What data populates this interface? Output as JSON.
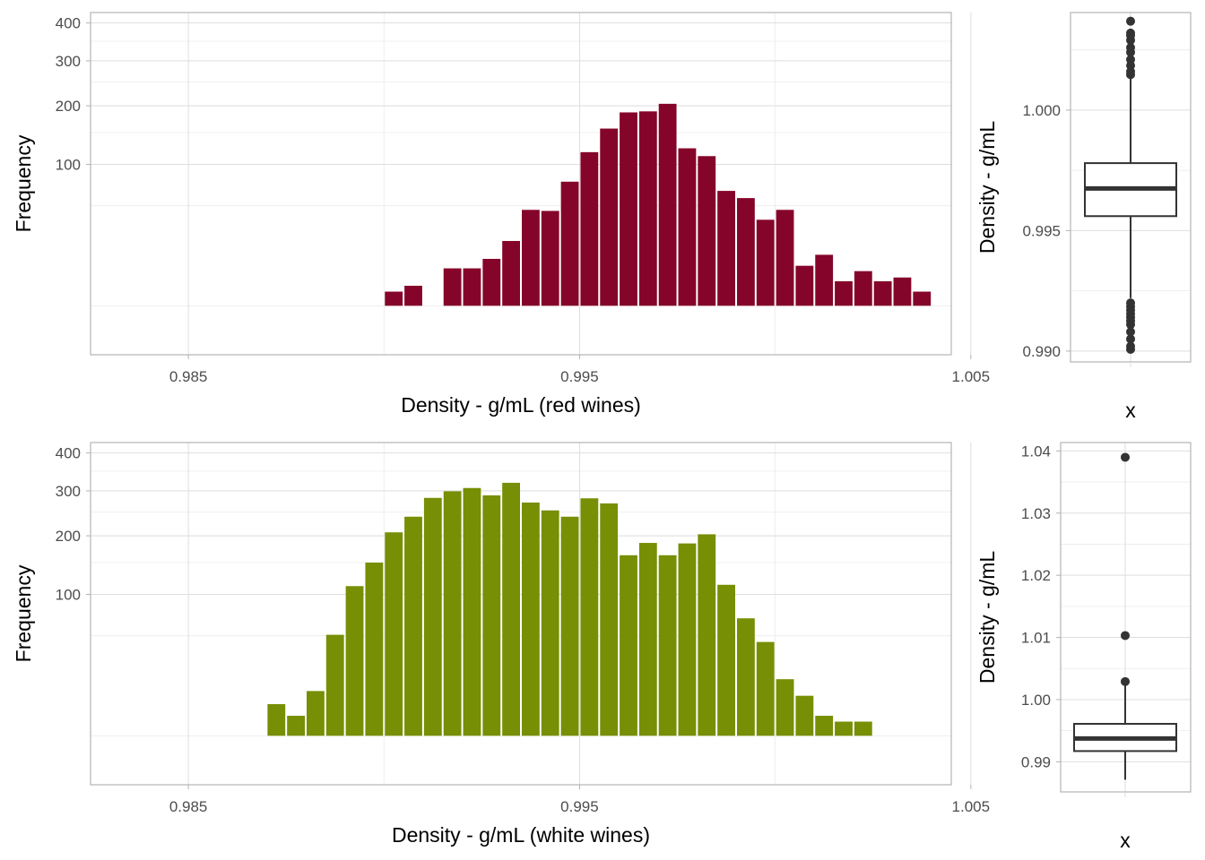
{
  "colors": {
    "red": "#85052a",
    "white": "#768f05",
    "box": "#333333"
  },
  "chart_data": [
    {
      "type": "bar",
      "panel": "top-left",
      "xlabel": "Density - g/mL (red wines)",
      "ylabel": "Frequency",
      "xlim": [
        0.9825,
        1.0045
      ],
      "xticks": [
        0.985,
        0.995,
        1.005
      ],
      "xtick_labels": [
        "0.985",
        "0.995",
        "1.005"
      ],
      "y_scale": "sqrt",
      "ylim": [
        -12,
        430
      ],
      "yticks": [
        100,
        200,
        300,
        400
      ],
      "ytick_labels": [
        "100",
        "200",
        "300",
        "400"
      ],
      "bin_start": 0.99,
      "bin_width": 0.0005,
      "values": [
        1,
        2,
        0,
        7,
        7,
        11,
        21,
        46,
        45,
        77,
        118,
        157,
        187,
        189,
        204,
        124,
        112,
        66,
        58,
        37,
        46,
        8,
        13,
        3,
        6,
        3,
        4,
        1
      ]
    },
    {
      "type": "boxplot",
      "panel": "top-right",
      "xlabel": "x",
      "ylabel": "Density - g/mL",
      "ylim": [
        0.98955,
        1.00405
      ],
      "yticks": [
        0.99,
        0.995,
        1.0
      ],
      "ytick_labels": [
        "0.990",
        "0.995",
        "1.000"
      ],
      "q1": 0.9956,
      "median": 0.99675,
      "q3": 0.9978,
      "whisker_low": 0.9922,
      "whisker_high": 1.0014,
      "outliers": [
        0.99007,
        0.9902,
        0.9905,
        0.9908,
        0.9911,
        0.99125,
        0.9914,
        0.99155,
        0.9917,
        0.99185,
        0.992,
        1.00147,
        1.0016,
        1.00185,
        1.0021,
        1.0024,
        1.0026,
        1.0029,
        1.0031,
        1.0032,
        1.00369
      ]
    },
    {
      "type": "bar",
      "panel": "bottom-left",
      "xlabel": "Density - g/mL (white wines)",
      "ylabel": "Frequency",
      "xlim": [
        0.9825,
        1.0045
      ],
      "xticks": [
        0.985,
        0.995,
        1.005
      ],
      "xtick_labels": [
        "0.985",
        "0.995",
        "1.005"
      ],
      "y_scale": "sqrt",
      "ylim": [
        -12,
        430
      ],
      "yticks": [
        100,
        200,
        300,
        400
      ],
      "ytick_labels": [
        "100",
        "200",
        "300",
        "400"
      ],
      "bin_start": 0.987,
      "bin_width": 0.0005,
      "values": [
        5,
        2,
        10,
        51,
        112,
        150,
        207,
        240,
        283,
        299,
        307,
        289,
        320,
        272,
        254,
        240,
        282,
        270,
        163,
        186,
        163,
        185,
        203,
        114,
        69,
        44,
        16,
        8,
        2,
        1,
        1
      ]
    },
    {
      "type": "boxplot",
      "panel": "bottom-right",
      "xlabel": "x",
      "ylabel": "Density - g/mL",
      "ylim": [
        0.98515,
        1.04135
      ],
      "yticks": [
        0.99,
        1.0,
        1.01,
        1.02,
        1.03,
        1.04
      ],
      "ytick_labels": [
        "0.99",
        "1.00",
        "1.01",
        "1.02",
        "1.03",
        "1.04"
      ],
      "q1": 0.99172,
      "median": 0.99374,
      "q3": 0.9961,
      "whisker_low": 0.98711,
      "whisker_high": 1.0029,
      "outliers": [
        1.0029,
        1.0103,
        1.03898
      ]
    }
  ]
}
